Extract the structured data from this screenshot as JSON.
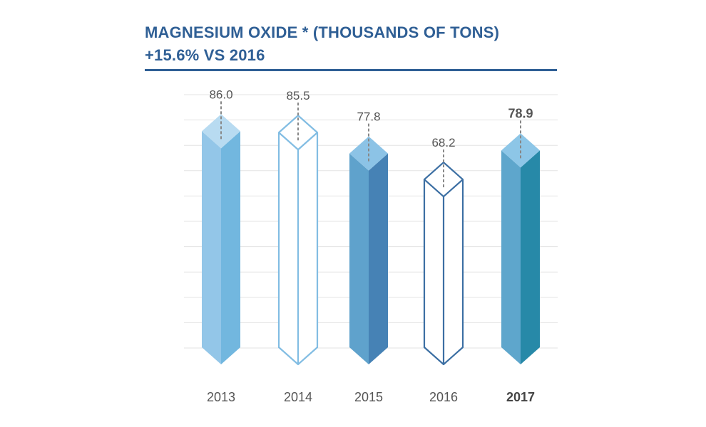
{
  "chart_data": {
    "type": "bar",
    "title": "MAGNESIUM OXIDE * (THOUSANDS OF TONS)",
    "subtitle": "+15.6% VS 2016",
    "categories": [
      "2013",
      "2014",
      "2015",
      "2016",
      "2017"
    ],
    "values": [
      86.0,
      85.5,
      77.8,
      68.2,
      78.9
    ],
    "value_labels": [
      "86.0",
      "85.5",
      "77.8",
      "68.2",
      "78.9"
    ],
    "highlight": "2017",
    "styles": [
      "filled-light",
      "outline-light",
      "filled-mid",
      "outline-dark",
      "filled-teal"
    ],
    "xlabel": "",
    "ylabel": "",
    "grid": true,
    "colors": {
      "title": "#2f5f95",
      "grid": "#e3e3e3",
      "label": "#555555",
      "leader": "#888888"
    }
  }
}
